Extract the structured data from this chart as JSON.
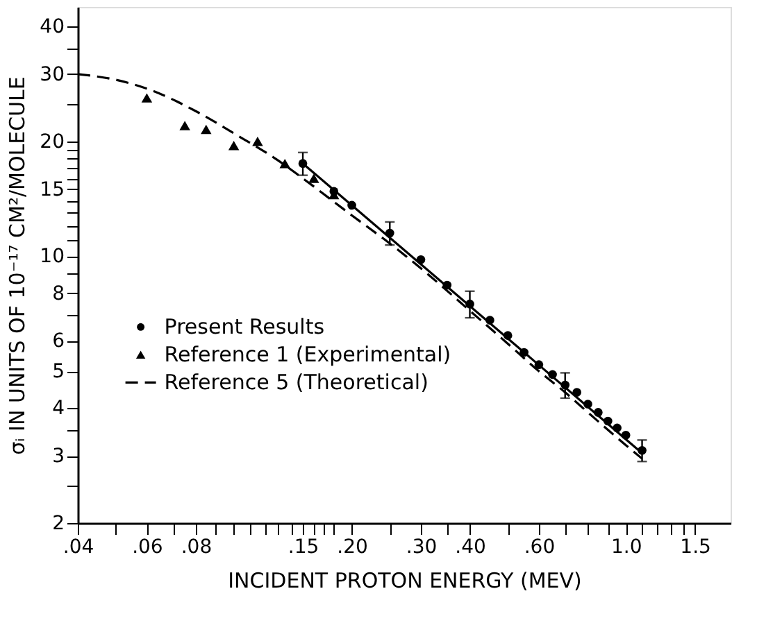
{
  "chart_data": {
    "type": "scatter",
    "xlabel": "INCIDENT PROTON ENERGY (MEV)",
    "ylabel": "σᵢ IN UNITS OF 10⁻¹⁷ CM²/MOLECULE",
    "log": "xy",
    "grid": false,
    "legend": "bottom left",
    "xlim": [
      0.04,
      1.85
    ],
    "xticks": [
      {
        "value": 0.04,
        "label": ".04"
      },
      {
        "value": 0.05,
        "label": null
      },
      {
        "value": 0.06,
        "label": ".06"
      },
      {
        "value": 0.07,
        "label": null
      },
      {
        "value": 0.08,
        "label": ".08"
      },
      {
        "value": 0.09,
        "label": null
      },
      {
        "value": 0.1,
        "label": null
      },
      {
        "value": 0.11,
        "label": null
      },
      {
        "value": 0.12,
        "label": null
      },
      {
        "value": 0.13,
        "label": null
      },
      {
        "value": 0.14,
        "label": null
      },
      {
        "value": 0.15,
        "label": ".15"
      },
      {
        "value": 0.16,
        "label": null
      },
      {
        "value": 0.17,
        "label": null
      },
      {
        "value": 0.18,
        "label": null
      },
      {
        "value": 0.2,
        "label": ".20"
      },
      {
        "value": 0.25,
        "label": null
      },
      {
        "value": 0.3,
        "label": ".30"
      },
      {
        "value": 0.35,
        "label": null
      },
      {
        "value": 0.4,
        "label": ".40"
      },
      {
        "value": 0.5,
        "label": null
      },
      {
        "value": 0.6,
        "label": ".60"
      },
      {
        "value": 0.7,
        "label": null
      },
      {
        "value": 0.8,
        "label": null
      },
      {
        "value": 0.9,
        "label": null
      },
      {
        "value": 1.0,
        "label": "1.0"
      },
      {
        "value": 1.1,
        "label": null
      },
      {
        "value": 1.2,
        "label": null
      },
      {
        "value": 1.3,
        "label": null
      },
      {
        "value": 1.4,
        "label": null
      },
      {
        "value": 1.5,
        "label": "1.5"
      }
    ],
    "ylim": [
      2,
      45
    ],
    "yticks": [
      2,
      {
        "value": 2.5,
        "label": null
      },
      3,
      {
        "value": 3.5,
        "label": null
      },
      4,
      5,
      6,
      {
        "value": 7,
        "label": null
      },
      8,
      {
        "value": 9,
        "label": null
      },
      10,
      {
        "value": 11,
        "label": null
      },
      {
        "value": 12,
        "label": null
      },
      {
        "value": 13,
        "label": null
      },
      {
        "value": 14,
        "label": null
      },
      15,
      {
        "value": 16,
        "label": null
      },
      {
        "value": 17,
        "label": null
      },
      {
        "value": 18,
        "label": null
      },
      {
        "value": 19,
        "label": null
      },
      20,
      {
        "value": 25,
        "label": null
      },
      30,
      {
        "value": 35,
        "label": null
      },
      40
    ],
    "series": [
      {
        "name": "Present Results",
        "marker": "circle",
        "color": "#000000",
        "x": [
          0.15,
          0.18,
          0.2,
          0.25,
          0.3,
          0.35,
          0.4,
          0.45,
          0.5,
          0.55,
          0.6,
          0.65,
          0.7,
          0.75,
          0.8,
          0.85,
          0.9,
          0.95,
          1.0,
          1.1
        ],
        "values": [
          17.5,
          14.8,
          13.6,
          11.5,
          9.8,
          8.4,
          7.5,
          6.8,
          6.2,
          5.6,
          5.2,
          4.9,
          4.6,
          4.4,
          4.1,
          3.9,
          3.7,
          3.55,
          3.4,
          3.1
        ],
        "errors": [
          1.2,
          null,
          null,
          0.8,
          null,
          null,
          0.6,
          null,
          null,
          null,
          null,
          null,
          0.35,
          null,
          null,
          null,
          null,
          null,
          null,
          0.2
        ]
      },
      {
        "name": "Reference 1 (Experimental)",
        "marker": "triangle",
        "color": "#000000",
        "x": [
          0.06,
          0.075,
          0.085,
          0.1,
          0.115,
          0.135,
          0.16,
          0.18
        ],
        "values": [
          26,
          22,
          21.5,
          19.5,
          20,
          17.5,
          16,
          14.5
        ]
      },
      {
        "name": "Reference 5 (Theoretical)",
        "type": "line",
        "line_style": "dashed",
        "color": "#000000",
        "x": [
          0.04,
          0.05,
          0.06,
          0.08,
          0.1,
          0.13,
          0.15,
          0.2,
          0.25,
          0.3,
          0.4,
          0.5,
          0.6,
          0.7,
          0.8,
          1.0,
          1.1
        ],
        "values": [
          30,
          29,
          27.5,
          24,
          21,
          17.8,
          16,
          12.8,
          10.8,
          9.3,
          7.2,
          5.9,
          5.0,
          4.4,
          3.9,
          3.2,
          2.95
        ]
      },
      {
        "type": "line",
        "line_style": "solid",
        "color": "#000000",
        "x": [
          0.15,
          1.1
        ],
        "values": [
          17.5,
          3.05
        ]
      }
    ]
  }
}
